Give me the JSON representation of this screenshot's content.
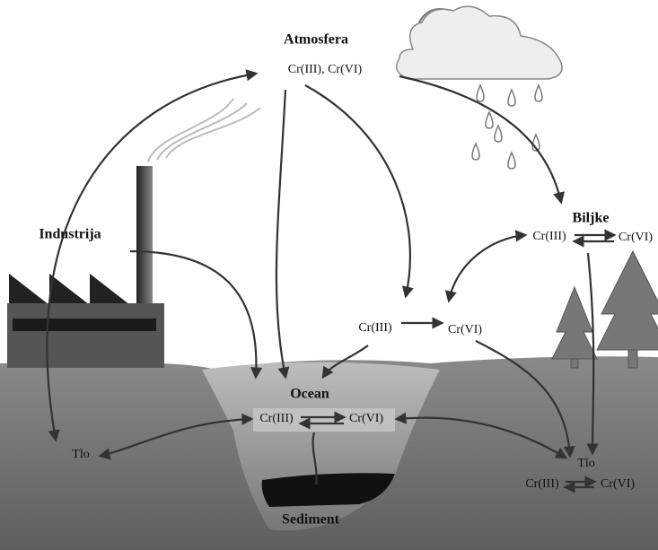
{
  "atmosphere": {
    "label": "Atmosfera",
    "species": "Cr(III), Cr(VI)"
  },
  "industry": {
    "label": "Industrija"
  },
  "plants": {
    "label": "Biljke",
    "species": [
      "Cr(III)",
      "Cr(VI)"
    ]
  },
  "transformation": {
    "species": [
      "Cr(III)",
      "Cr(VI)"
    ]
  },
  "ocean": {
    "label": "Ocean",
    "species": [
      "Cr(III)",
      "Cr(VI)"
    ]
  },
  "soil_left": {
    "label": "Tlo"
  },
  "soil_right": {
    "label": "Tlo",
    "species": [
      "Cr(III)",
      "Cr(VI)"
    ]
  },
  "sediment": {
    "label": "Sediment"
  }
}
